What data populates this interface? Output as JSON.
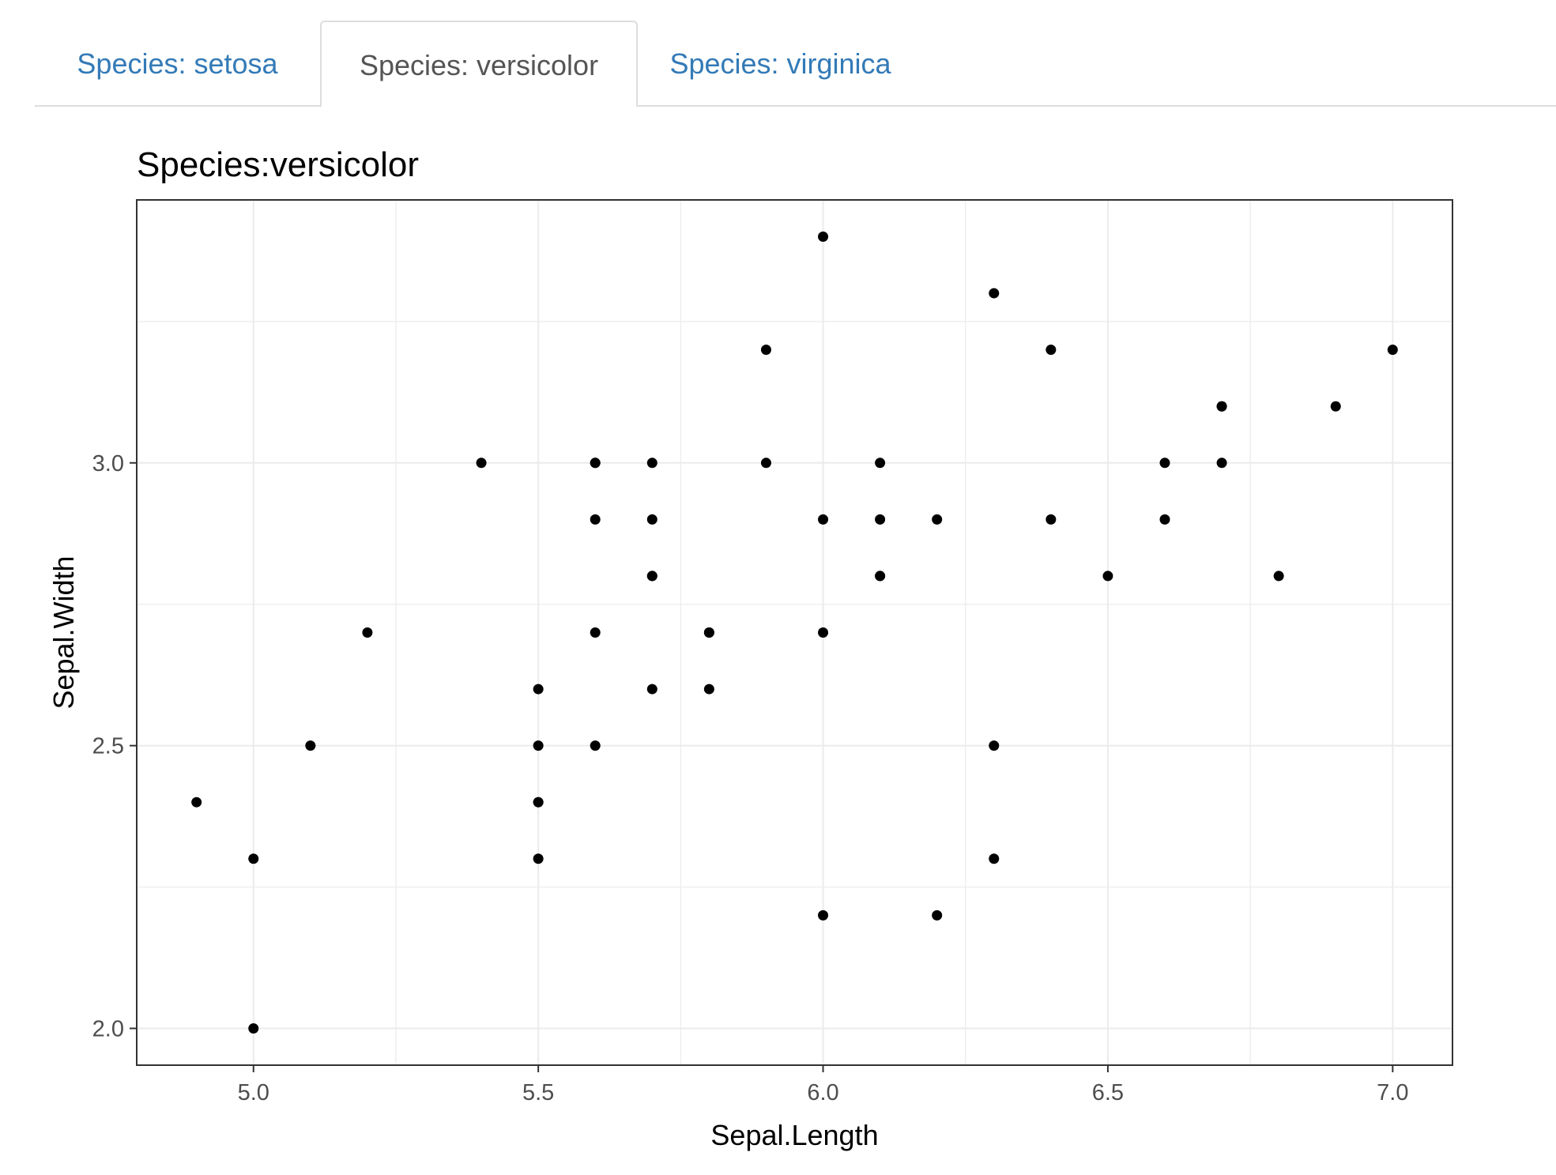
{
  "tabs": [
    {
      "label": "Species: setosa",
      "active": false
    },
    {
      "label": "Species: versicolor",
      "active": true
    },
    {
      "label": "Species: virginica",
      "active": false
    }
  ],
  "colors": {
    "tab_link": "#337ab7",
    "tab_active_text": "#555555",
    "point": "#000000",
    "grid": "#ebebeb",
    "panel_border": "#333333"
  },
  "chart_data": {
    "type": "scatter",
    "title": "Species:versicolor",
    "xlabel": "Sepal.Length",
    "ylabel": "Sepal.Width",
    "xlim": [
      4.795,
      7.105
    ],
    "ylim": [
      1.935,
      3.465
    ],
    "x_ticks": [
      5.0,
      5.5,
      6.0,
      6.5,
      7.0
    ],
    "x_tick_labels": [
      "5.0",
      "5.5",
      "6.0",
      "6.5",
      "7.0"
    ],
    "y_ticks": [
      2.0,
      2.5,
      3.0
    ],
    "y_tick_labels": [
      "2.0",
      "2.5",
      "3.0"
    ],
    "grid": true,
    "legend": "none",
    "points": [
      [
        7.0,
        3.2
      ],
      [
        6.4,
        3.2
      ],
      [
        6.9,
        3.1
      ],
      [
        5.5,
        2.3
      ],
      [
        6.5,
        2.8
      ],
      [
        5.7,
        2.8
      ],
      [
        6.3,
        3.3
      ],
      [
        4.9,
        2.4
      ],
      [
        6.6,
        2.9
      ],
      [
        5.2,
        2.7
      ],
      [
        5.0,
        2.0
      ],
      [
        5.9,
        3.0
      ],
      [
        6.0,
        2.2
      ],
      [
        6.1,
        2.9
      ],
      [
        5.6,
        2.9
      ],
      [
        6.7,
        3.1
      ],
      [
        5.6,
        3.0
      ],
      [
        5.8,
        2.7
      ],
      [
        6.2,
        2.2
      ],
      [
        5.6,
        2.5
      ],
      [
        5.9,
        3.2
      ],
      [
        6.1,
        2.8
      ],
      [
        6.3,
        2.5
      ],
      [
        6.1,
        2.8
      ],
      [
        6.4,
        2.9
      ],
      [
        6.6,
        3.0
      ],
      [
        6.8,
        2.8
      ],
      [
        6.7,
        3.0
      ],
      [
        6.0,
        2.9
      ],
      [
        5.7,
        2.6
      ],
      [
        5.5,
        2.4
      ],
      [
        5.5,
        2.4
      ],
      [
        5.8,
        2.7
      ],
      [
        6.0,
        2.7
      ],
      [
        5.4,
        3.0
      ],
      [
        6.0,
        3.4
      ],
      [
        6.7,
        3.1
      ],
      [
        6.3,
        2.3
      ],
      [
        5.6,
        3.0
      ],
      [
        5.5,
        2.5
      ],
      [
        5.5,
        2.6
      ],
      [
        6.1,
        3.0
      ],
      [
        5.8,
        2.6
      ],
      [
        5.0,
        2.3
      ],
      [
        5.6,
        2.7
      ],
      [
        5.7,
        3.0
      ],
      [
        5.7,
        2.9
      ],
      [
        6.2,
        2.9
      ],
      [
        5.1,
        2.5
      ],
      [
        5.7,
        2.8
      ]
    ]
  }
}
